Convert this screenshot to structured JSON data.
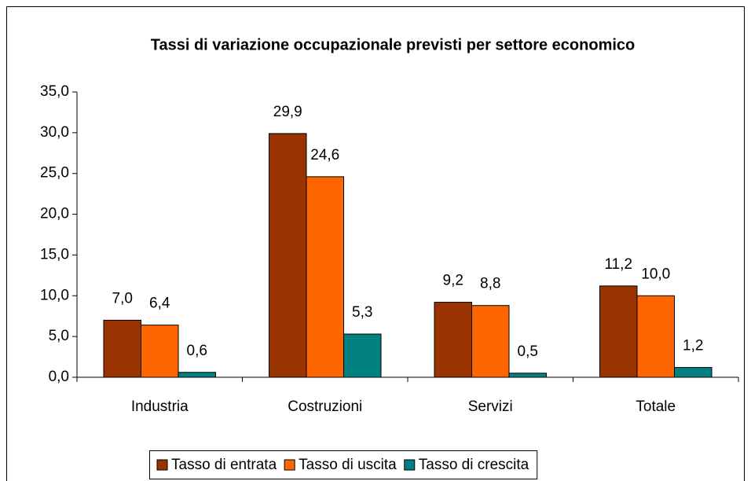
{
  "chart_data": {
    "type": "bar",
    "title": "Tassi di variazione occupazionale previsti per settore economico",
    "categories": [
      "Industria",
      "Costruzioni",
      "Servizi",
      "Totale"
    ],
    "series": [
      {
        "name": "Tasso di entrata",
        "color": "#993300",
        "values": [
          7.0,
          29.9,
          9.2,
          11.2
        ],
        "value_labels": [
          "7,0",
          "29,9",
          "9,2",
          "11,2"
        ]
      },
      {
        "name": "Tasso di uscita",
        "color": "#ff6600",
        "values": [
          6.4,
          24.6,
          8.8,
          10.0
        ],
        "value_labels": [
          "6,4",
          "24,6",
          "8,8",
          "10,0"
        ]
      },
      {
        "name": "Tasso di crescita",
        "color": "#008080",
        "values": [
          0.6,
          5.3,
          0.5,
          1.2
        ],
        "value_labels": [
          "0,6",
          "5,3",
          "0,5",
          "1,2"
        ]
      }
    ],
    "ylim": [
      0,
      35
    ],
    "yticks": [
      {
        "value": 0,
        "label": "0,0"
      },
      {
        "value": 5,
        "label": "5,0"
      },
      {
        "value": 10,
        "label": "10,0"
      },
      {
        "value": 15,
        "label": "15,0"
      },
      {
        "value": 20,
        "label": "20,0"
      },
      {
        "value": 25,
        "label": "25,0"
      },
      {
        "value": 30,
        "label": "30,0"
      },
      {
        "value": 35,
        "label": "35,0"
      }
    ],
    "legend": "bottom"
  }
}
